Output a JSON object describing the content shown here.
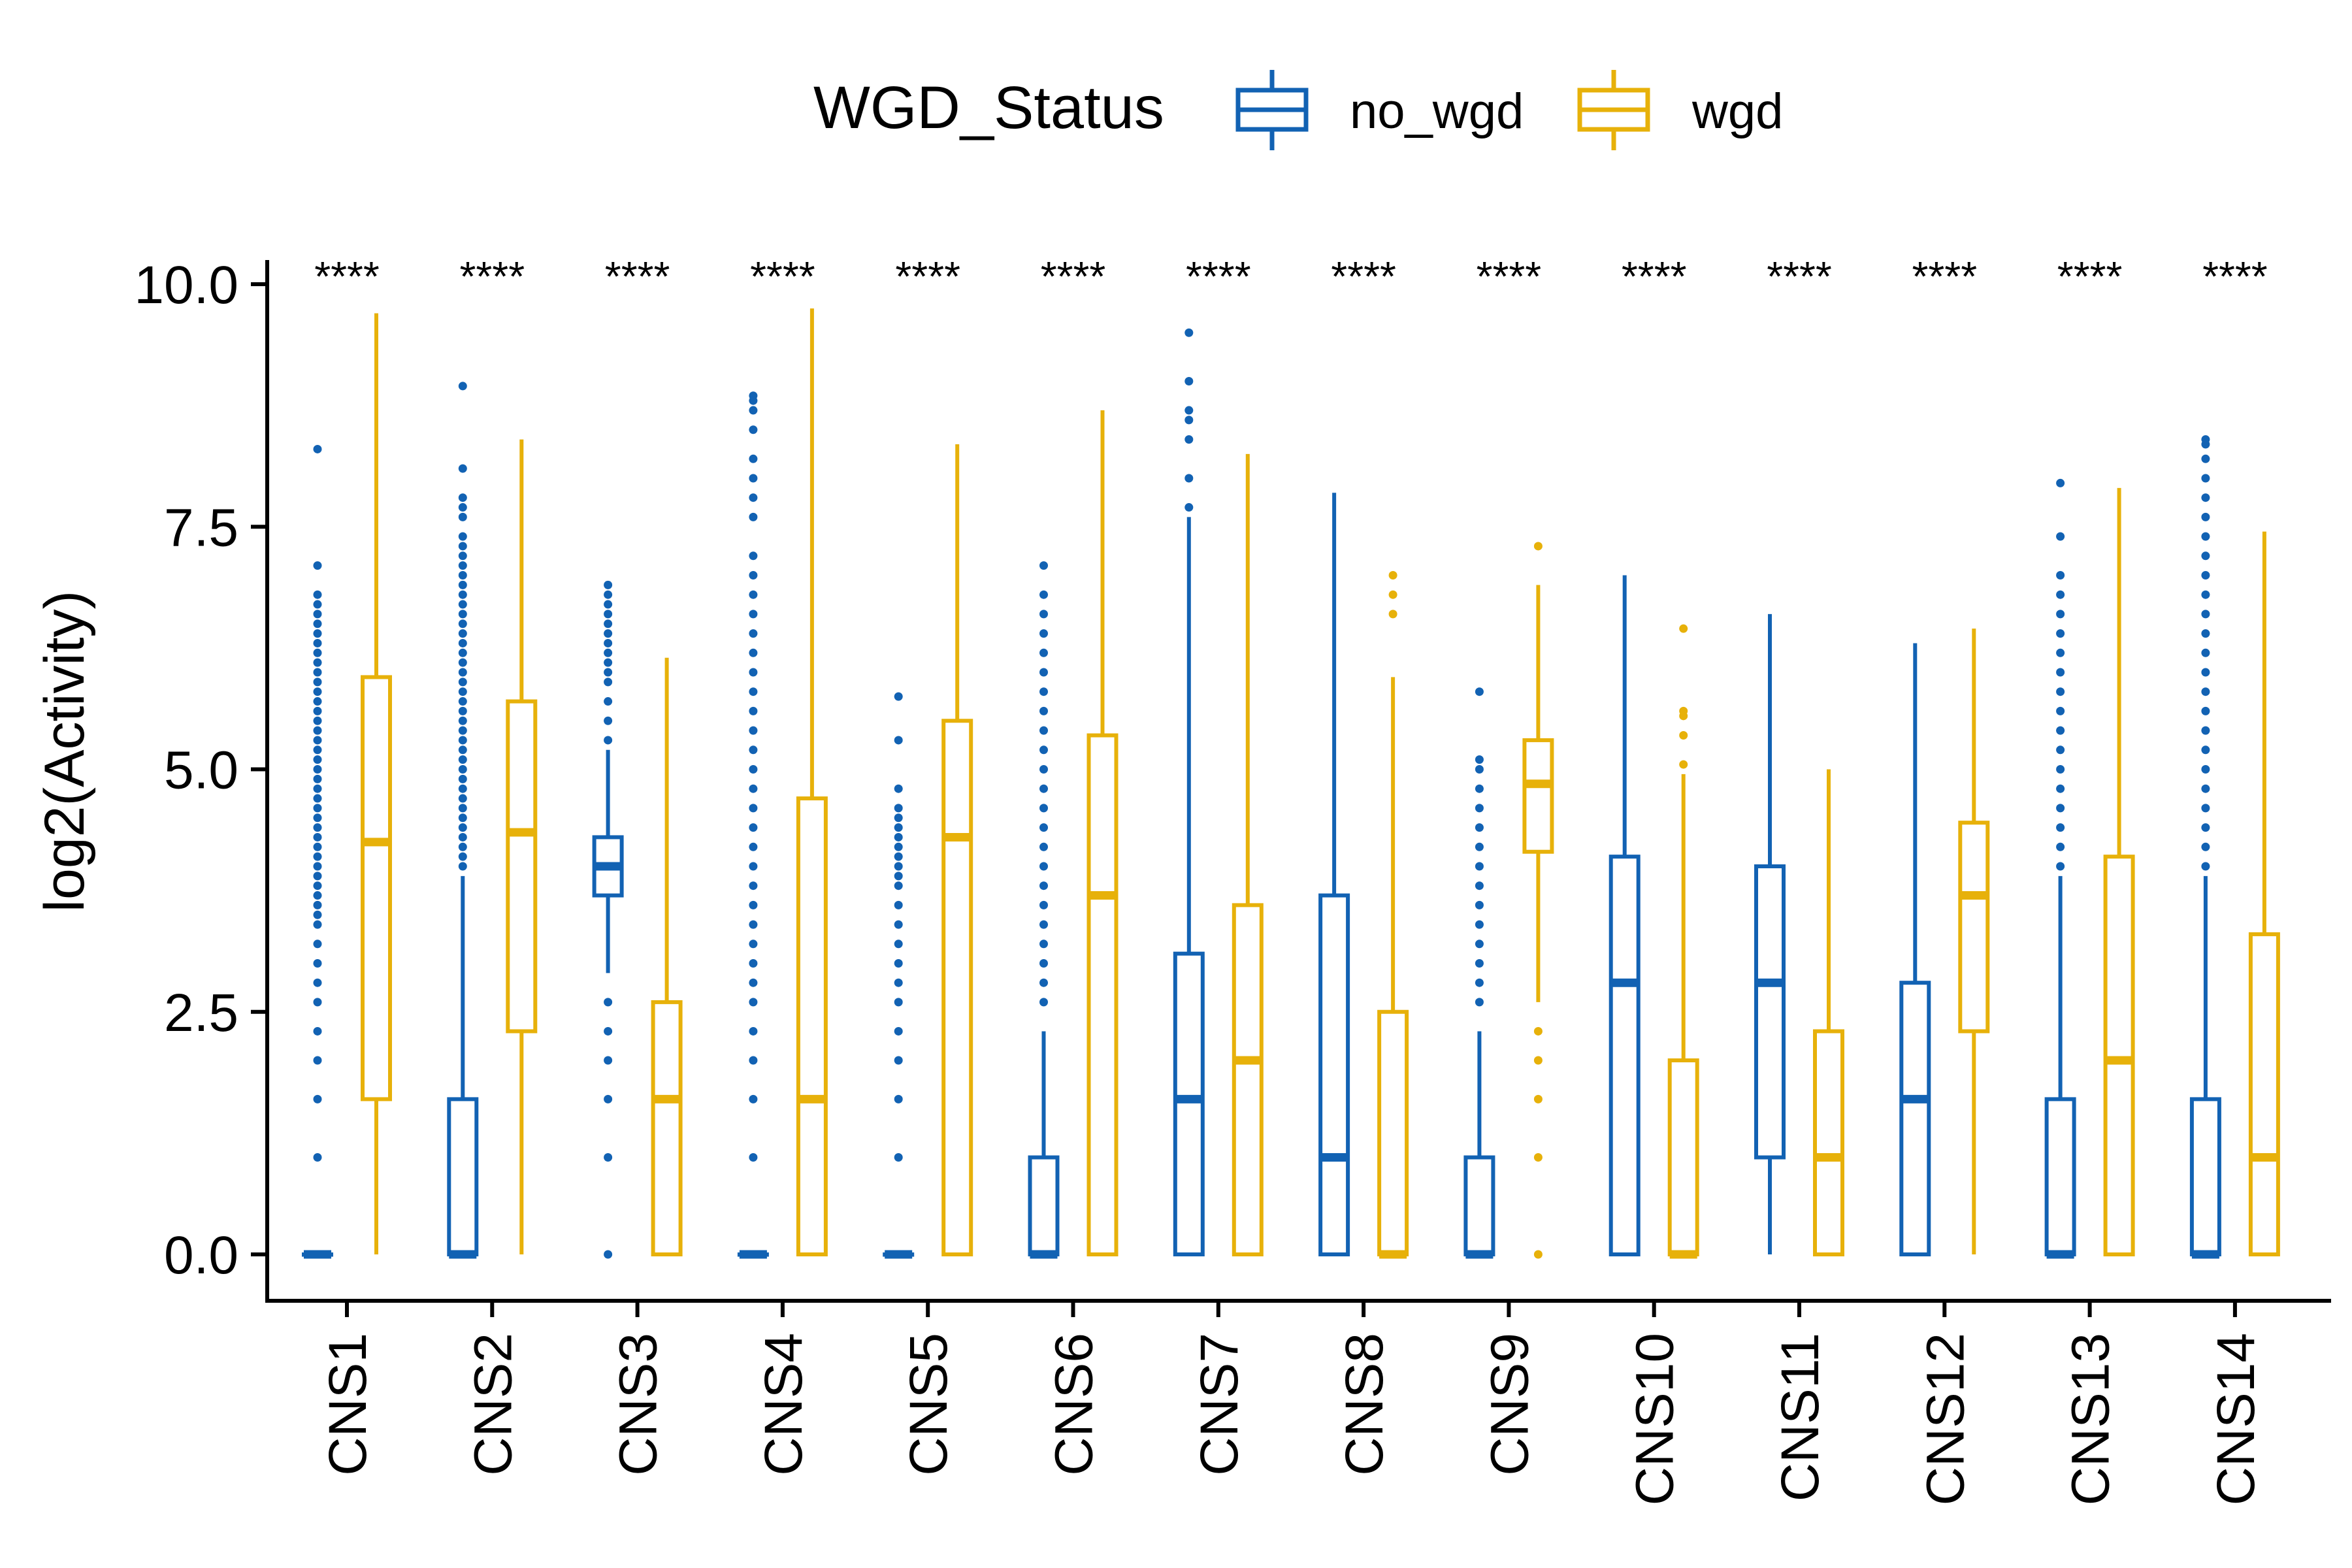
{
  "chart_data": {
    "type": "boxplot",
    "title": "",
    "xlabel": "",
    "ylabel": "log2(Activity)",
    "ylim": [
      -0.5,
      10.2
    ],
    "yticks": [
      "0.0",
      "2.5",
      "5.0",
      "7.5",
      "10.0"
    ],
    "ytick_values": [
      0,
      2.5,
      5,
      7.5,
      10
    ],
    "grid": false,
    "legend": {
      "title": "WGD_Status",
      "position": "top",
      "entries": [
        "no_wgd",
        "wgd"
      ]
    },
    "colors": {
      "no_wgd": "#1262B3",
      "wgd": "#E7B10A"
    },
    "categories": [
      "CNS1",
      "CNS2",
      "CNS3",
      "CNS4",
      "CNS5",
      "CNS6",
      "CNS7",
      "CNS8",
      "CNS9",
      "CNS10",
      "CNS11",
      "CNS12",
      "CNS13",
      "CNS14"
    ],
    "significance": [
      "****",
      "****",
      "****",
      "****",
      "****",
      "****",
      "****",
      "****",
      "****",
      "****",
      "****",
      "****",
      "****",
      "****"
    ],
    "series": [
      {
        "name": "no_wgd",
        "boxes": [
          {
            "lower_whisker": 0,
            "q1": 0,
            "median": 0,
            "q3": 0,
            "upper_whisker": 0,
            "outliers": [
              1.0,
              1.6,
              2.0,
              2.3,
              2.6,
              2.8,
              3.0,
              3.2,
              3.4,
              3.5,
              3.6,
              3.7,
              3.8,
              3.9,
              4.0,
              4.1,
              4.2,
              4.3,
              4.4,
              4.5,
              4.6,
              4.7,
              4.8,
              4.9,
              5.0,
              5.1,
              5.2,
              5.3,
              5.4,
              5.5,
              5.6,
              5.7,
              5.8,
              5.9,
              6.0,
              6.1,
              6.2,
              6.3,
              6.4,
              6.5,
              6.6,
              6.7,
              6.8,
              7.1,
              8.3
            ]
          },
          {
            "lower_whisker": 0,
            "q1": 0,
            "median": 0,
            "q3": 1.6,
            "upper_whisker": 3.9,
            "outliers": [
              4.0,
              4.1,
              4.2,
              4.3,
              4.4,
              4.5,
              4.6,
              4.7,
              4.8,
              4.9,
              5.0,
              5.1,
              5.2,
              5.3,
              5.4,
              5.5,
              5.6,
              5.7,
              5.8,
              5.9,
              6.0,
              6.1,
              6.2,
              6.3,
              6.4,
              6.5,
              6.6,
              6.7,
              6.8,
              6.9,
              7.0,
              7.1,
              7.2,
              7.3,
              7.4,
              7.6,
              7.7,
              7.8,
              8.1,
              8.95
            ]
          },
          {
            "lower_whisker": 2.9,
            "q1": 3.7,
            "median": 4.0,
            "q3": 4.3,
            "upper_whisker": 5.2,
            "outliers": [
              0,
              1.0,
              1.6,
              2.0,
              2.3,
              2.6,
              5.3,
              5.5,
              5.7,
              5.9,
              6.0,
              6.1,
              6.2,
              6.3,
              6.4,
              6.5,
              6.6,
              6.7,
              6.8,
              6.9
            ]
          },
          {
            "lower_whisker": 0,
            "q1": 0,
            "median": 0,
            "q3": 0,
            "upper_whisker": 0,
            "outliers": [
              1.0,
              1.6,
              2.0,
              2.3,
              2.6,
              2.8,
              3.0,
              3.2,
              3.4,
              3.6,
              3.8,
              4.0,
              4.2,
              4.4,
              4.6,
              4.8,
              5.0,
              5.2,
              5.4,
              5.6,
              5.8,
              6.0,
              6.2,
              6.4,
              6.6,
              6.8,
              7.0,
              7.2,
              7.6,
              7.8,
              8.0,
              8.2,
              8.5,
              8.7,
              8.8,
              8.85
            ]
          },
          {
            "lower_whisker": 0,
            "q1": 0,
            "median": 0,
            "q3": 0,
            "upper_whisker": 0,
            "outliers": [
              1.0,
              1.6,
              2.0,
              2.3,
              2.6,
              2.8,
              3.0,
              3.2,
              3.4,
              3.6,
              3.8,
              3.9,
              4.0,
              4.1,
              4.2,
              4.3,
              4.4,
              4.5,
              4.6,
              4.8,
              5.3,
              5.75
            ]
          },
          {
            "lower_whisker": 0,
            "q1": 0,
            "median": 0,
            "q3": 1.0,
            "upper_whisker": 2.3,
            "outliers": [
              2.6,
              2.8,
              3.0,
              3.2,
              3.4,
              3.6,
              3.8,
              4.0,
              4.2,
              4.4,
              4.6,
              4.8,
              5.0,
              5.2,
              5.4,
              5.6,
              5.8,
              6.0,
              6.2,
              6.4,
              6.6,
              6.8,
              7.1
            ]
          },
          {
            "lower_whisker": 0,
            "q1": 0,
            "median": 1.6,
            "q3": 3.1,
            "upper_whisker": 7.6,
            "outliers": [
              7.7,
              8.0,
              8.4,
              8.6,
              8.7,
              9.0,
              9.5
            ]
          },
          {
            "lower_whisker": 0,
            "q1": 0,
            "median": 1.0,
            "q3": 3.7,
            "upper_whisker": 7.85,
            "outliers": []
          },
          {
            "lower_whisker": 0,
            "q1": 0,
            "median": 0,
            "q3": 1.0,
            "upper_whisker": 2.3,
            "outliers": [
              2.6,
              2.8,
              3.0,
              3.2,
              3.4,
              3.6,
              3.8,
              4.0,
              4.2,
              4.4,
              4.6,
              4.8,
              5.0,
              5.1,
              5.8
            ]
          },
          {
            "lower_whisker": 0,
            "q1": 0,
            "median": 2.8,
            "q3": 4.1,
            "upper_whisker": 7.0,
            "outliers": []
          },
          {
            "lower_whisker": 0,
            "q1": 1.0,
            "median": 2.8,
            "q3": 4.0,
            "upper_whisker": 6.6,
            "outliers": []
          },
          {
            "lower_whisker": 0,
            "q1": 0,
            "median": 1.6,
            "q3": 2.8,
            "upper_whisker": 6.3,
            "outliers": []
          },
          {
            "lower_whisker": 0,
            "q1": 0,
            "median": 0,
            "q3": 1.6,
            "upper_whisker": 3.9,
            "outliers": [
              4.0,
              4.2,
              4.4,
              4.6,
              4.8,
              5.0,
              5.2,
              5.4,
              5.6,
              5.8,
              6.0,
              6.2,
              6.4,
              6.6,
              6.8,
              7.0,
              7.4,
              7.95
            ]
          },
          {
            "lower_whisker": 0,
            "q1": 0,
            "median": 0,
            "q3": 1.6,
            "upper_whisker": 3.9,
            "outliers": [
              4.0,
              4.2,
              4.4,
              4.6,
              4.8,
              5.0,
              5.2,
              5.4,
              5.6,
              5.8,
              6.0,
              6.2,
              6.4,
              6.6,
              6.8,
              7.0,
              7.2,
              7.4,
              7.6,
              7.8,
              8.0,
              8.2,
              8.35,
              8.4
            ]
          }
        ]
      },
      {
        "name": "wgd",
        "boxes": [
          {
            "lower_whisker": 0,
            "q1": 1.6,
            "median": 4.25,
            "q3": 5.95,
            "upper_whisker": 9.7,
            "outliers": []
          },
          {
            "lower_whisker": 0,
            "q1": 2.3,
            "median": 4.35,
            "q3": 5.7,
            "upper_whisker": 8.4,
            "outliers": []
          },
          {
            "lower_whisker": 0,
            "q1": 0,
            "median": 1.6,
            "q3": 2.6,
            "upper_whisker": 6.15,
            "outliers": []
          },
          {
            "lower_whisker": 0,
            "q1": 0,
            "median": 1.6,
            "q3": 4.7,
            "upper_whisker": 9.75,
            "outliers": []
          },
          {
            "lower_whisker": 0,
            "q1": 0,
            "median": 4.3,
            "q3": 5.5,
            "upper_whisker": 8.35,
            "outliers": []
          },
          {
            "lower_whisker": 0,
            "q1": 0,
            "median": 3.7,
            "q3": 5.35,
            "upper_whisker": 8.7,
            "outliers": []
          },
          {
            "lower_whisker": 0,
            "q1": 0,
            "median": 2.0,
            "q3": 3.6,
            "upper_whisker": 8.25,
            "outliers": []
          },
          {
            "lower_whisker": 0,
            "q1": 0,
            "median": 0,
            "q3": 2.5,
            "upper_whisker": 5.95,
            "outliers": [
              6.6,
              6.8,
              7.0
            ]
          },
          {
            "lower_whisker": 2.6,
            "q1": 4.15,
            "median": 4.85,
            "q3": 5.3,
            "upper_whisker": 6.9,
            "outliers": [
              0,
              1.0,
              1.6,
              2.0,
              2.3,
              7.3
            ]
          },
          {
            "lower_whisker": 0,
            "q1": 0,
            "median": 0,
            "q3": 2.0,
            "upper_whisker": 4.95,
            "outliers": [
              5.05,
              5.35,
              5.55,
              5.6,
              6.45
            ]
          },
          {
            "lower_whisker": 0,
            "q1": 0,
            "median": 1.0,
            "q3": 2.3,
            "upper_whisker": 5.0,
            "outliers": []
          },
          {
            "lower_whisker": 0,
            "q1": 2.3,
            "median": 3.7,
            "q3": 4.45,
            "upper_whisker": 6.45,
            "outliers": []
          },
          {
            "lower_whisker": 0,
            "q1": 0,
            "median": 2.0,
            "q3": 4.1,
            "upper_whisker": 7.9,
            "outliers": []
          },
          {
            "lower_whisker": 0,
            "q1": 0,
            "median": 1.0,
            "q3": 3.3,
            "upper_whisker": 7.45,
            "outliers": []
          }
        ]
      }
    ]
  }
}
